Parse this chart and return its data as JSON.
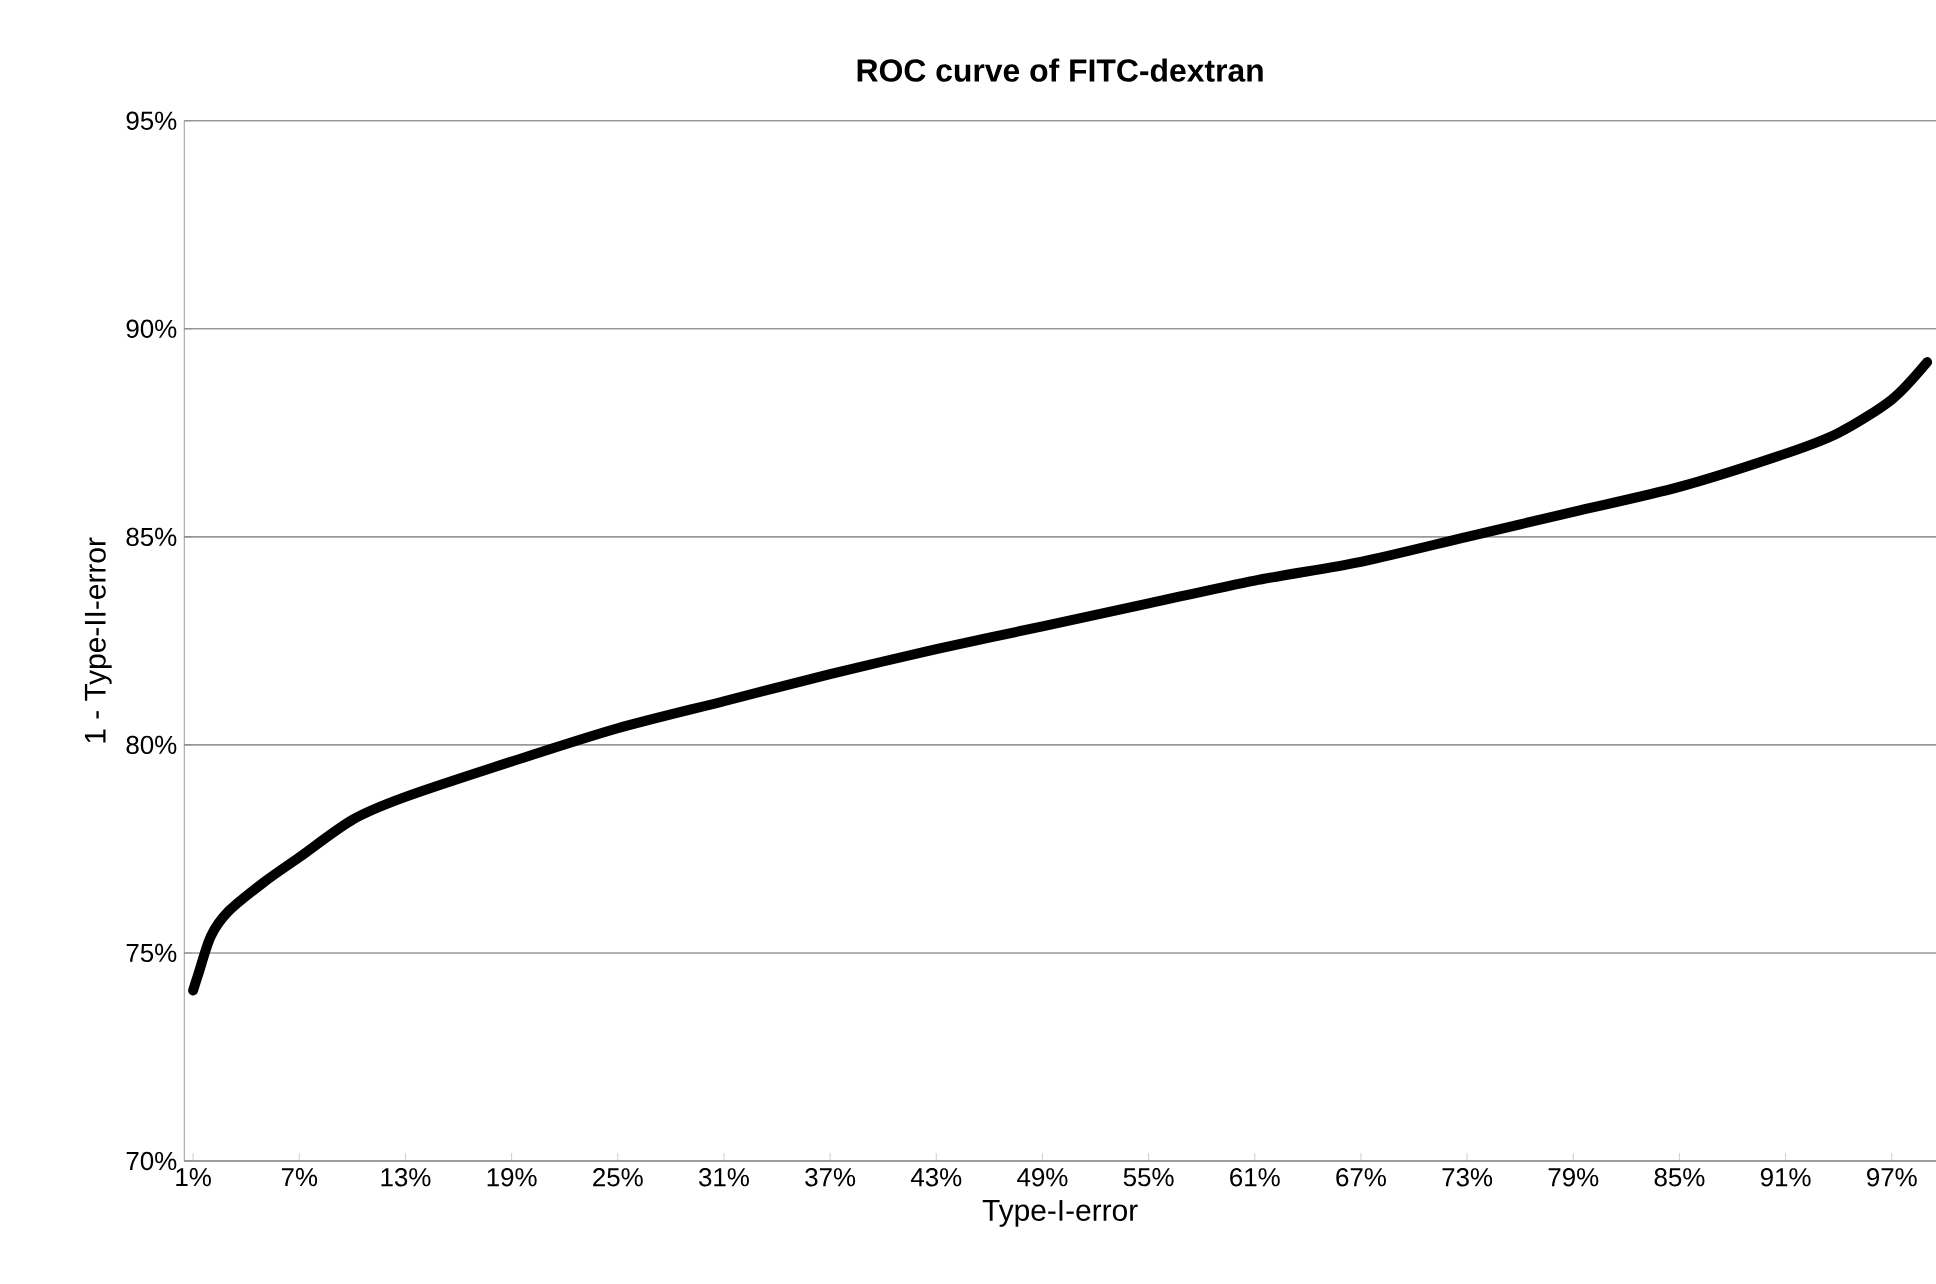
{
  "chart_data": {
    "type": "line",
    "title": "ROC curve of FITC-dextran",
    "xlabel": "Type-I-error",
    "ylabel": "1 - Type-II-error",
    "x": [
      1,
      1.3,
      2,
      3,
      5,
      7,
      10,
      13,
      19,
      25,
      31,
      37,
      43,
      49,
      55,
      61,
      67,
      73,
      79,
      85,
      91,
      94,
      97,
      99
    ],
    "series": [
      {
        "color": "#000000",
        "values": [
          74.1,
          74.5,
          75.4,
          76.0,
          76.7,
          77.3,
          78.2,
          78.75,
          79.6,
          80.4,
          81.05,
          81.7,
          82.3,
          82.85,
          83.4,
          83.95,
          84.4,
          85.0,
          85.6,
          86.2,
          87.0,
          87.5,
          88.3,
          89.2
        ]
      }
    ],
    "xlim": [
      0.5,
      99.5
    ],
    "xticks": [
      {
        "value": 1,
        "label": "1%"
      },
      {
        "value": 7,
        "label": "7%"
      },
      {
        "value": 13,
        "label": "13%"
      },
      {
        "value": 19,
        "label": "19%"
      },
      {
        "value": 25,
        "label": "25%"
      },
      {
        "value": 31,
        "label": "31%"
      },
      {
        "value": 37,
        "label": "37%"
      },
      {
        "value": 43,
        "label": "43%"
      },
      {
        "value": 49,
        "label": "49%"
      },
      {
        "value": 55,
        "label": "55%"
      },
      {
        "value": 61,
        "label": "61%"
      },
      {
        "value": 67,
        "label": "67%"
      },
      {
        "value": 73,
        "label": "73%"
      },
      {
        "value": 79,
        "label": "79%"
      },
      {
        "value": 85,
        "label": "85%"
      },
      {
        "value": 91,
        "label": "91%"
      },
      {
        "value": 97,
        "label": "97%"
      }
    ],
    "ylim": [
      70,
      95
    ],
    "yticks": [
      {
        "value": 70,
        "label": "70%"
      },
      {
        "value": 75,
        "label": "75%"
      },
      {
        "value": 80,
        "label": "80%"
      },
      {
        "value": 85,
        "label": "85%"
      },
      {
        "value": 90,
        "label": "90%"
      },
      {
        "value": 95,
        "label": "95%"
      }
    ],
    "grid": "y",
    "marker": "none",
    "line_style": "solid"
  }
}
